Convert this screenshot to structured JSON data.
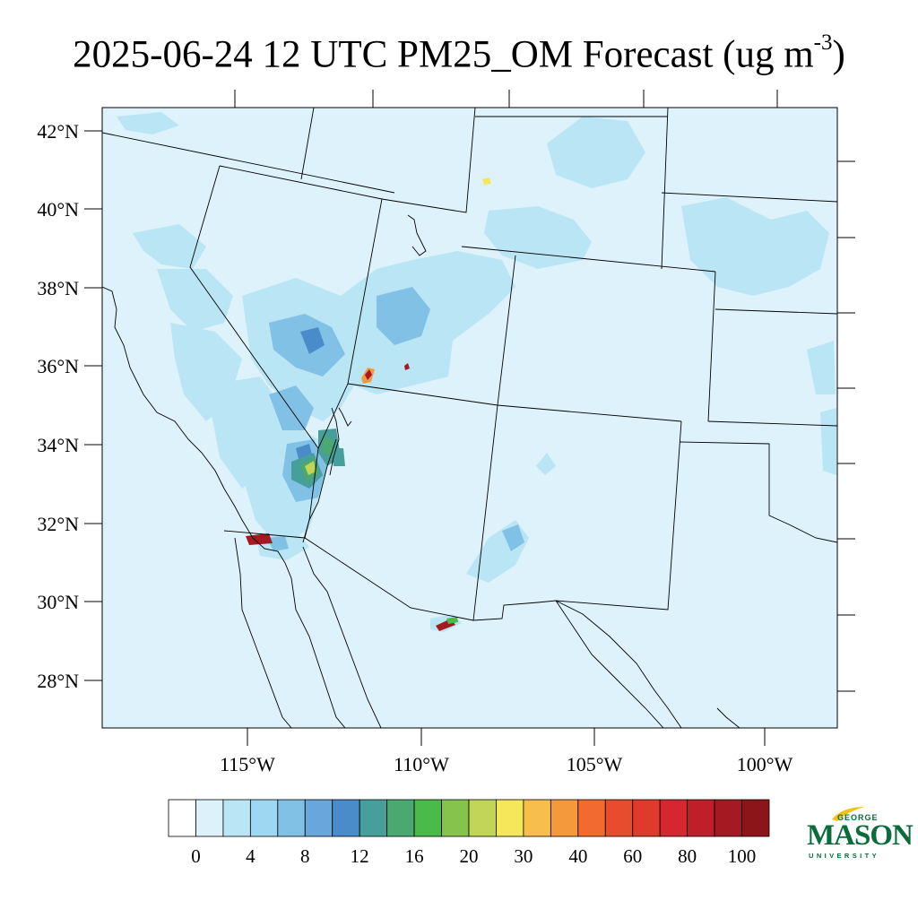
{
  "title": {
    "main": "2025-06-24 12 UTC PM25_OM Forecast (ug m",
    "exponent": "-3",
    "close": ")"
  },
  "map": {
    "background_color": "#def2fb",
    "lat_labels": [
      "42°N",
      "40°N",
      "38°N",
      "36°N",
      "34°N",
      "32°N",
      "30°N",
      "28°N"
    ],
    "lon_labels": [
      "115°W",
      "110°W",
      "105°W",
      "100°W"
    ]
  },
  "colorbar": {
    "colors": [
      "#ffffff",
      "#ddf1fa",
      "#bae5f5",
      "#9dd8f3",
      "#82c1e6",
      "#69a6db",
      "#4a8bca",
      "#479f9b",
      "#4aa870",
      "#4aba4a",
      "#86c34d",
      "#c3d556",
      "#f6e75a",
      "#f7be4b",
      "#f59a3c",
      "#f26a2e",
      "#e84c2f",
      "#e03a2c",
      "#d62730",
      "#c01f2a",
      "#a51a22",
      "#8b1518"
    ],
    "labels": [
      "0",
      "4",
      "8",
      "12",
      "16",
      "20",
      "30",
      "40",
      "60",
      "80",
      "100"
    ]
  },
  "logo": {
    "top": "GEORGE",
    "middle": "MASON",
    "bottom": "UNIVERSITY",
    "color": "#0b6b3a"
  }
}
